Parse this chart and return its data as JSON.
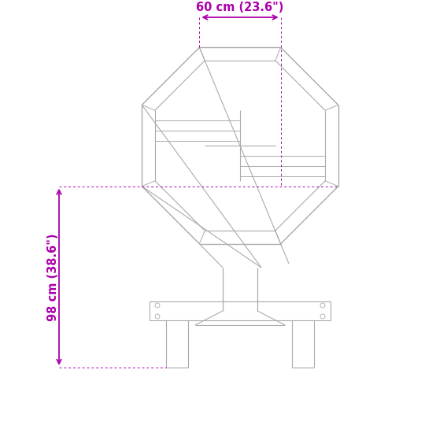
{
  "bg_color": "#ffffff",
  "line_color": "#aaaaaa",
  "dim_color": "#aa00aa",
  "width_label": "60 cm (23.6\")",
  "height_label": "98 cm (38.6\")",
  "fig_width": 5.4,
  "fig_height": 5.4,
  "dpi": 100
}
